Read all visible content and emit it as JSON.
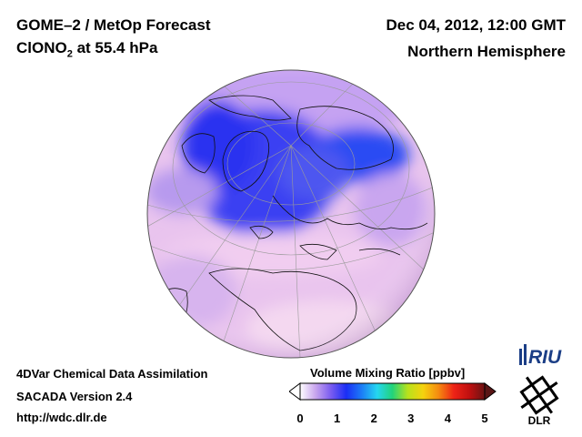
{
  "header": {
    "title_line1": "GOME–2 / MetOp Forecast",
    "species": "ClONO",
    "species_sub": "2",
    "level": " at 55.4 hPa",
    "date": "Dec 04, 2012, 12:00 GMT",
    "region": "Northern Hemisphere"
  },
  "footer": {
    "line1": "4DVar Chemical Data Assimilation",
    "line2": "SACADA Version 2.4",
    "line3": "http://wdc.dlr.de"
  },
  "colorbar": {
    "title": "Volume Mixing Ratio [ppbv]",
    "ticks": [
      "0",
      "1",
      "2",
      "3",
      "4",
      "5"
    ],
    "range": [
      0,
      5
    ],
    "colors": [
      "#ffffff",
      "#c9a6ee",
      "#7a5cf0",
      "#1b2ef5",
      "#1c7cf6",
      "#25d6f0",
      "#22d37a",
      "#b8e21c",
      "#f5d20e",
      "#f58a10",
      "#ee2316",
      "#c01010",
      "#6a1313"
    ]
  },
  "logos": {
    "riu": "RIU",
    "dlr": "DLR"
  },
  "map": {
    "projection": "orthographic",
    "ocean_color": "#e6b6ea",
    "low_color": "#2a3cf2"
  }
}
